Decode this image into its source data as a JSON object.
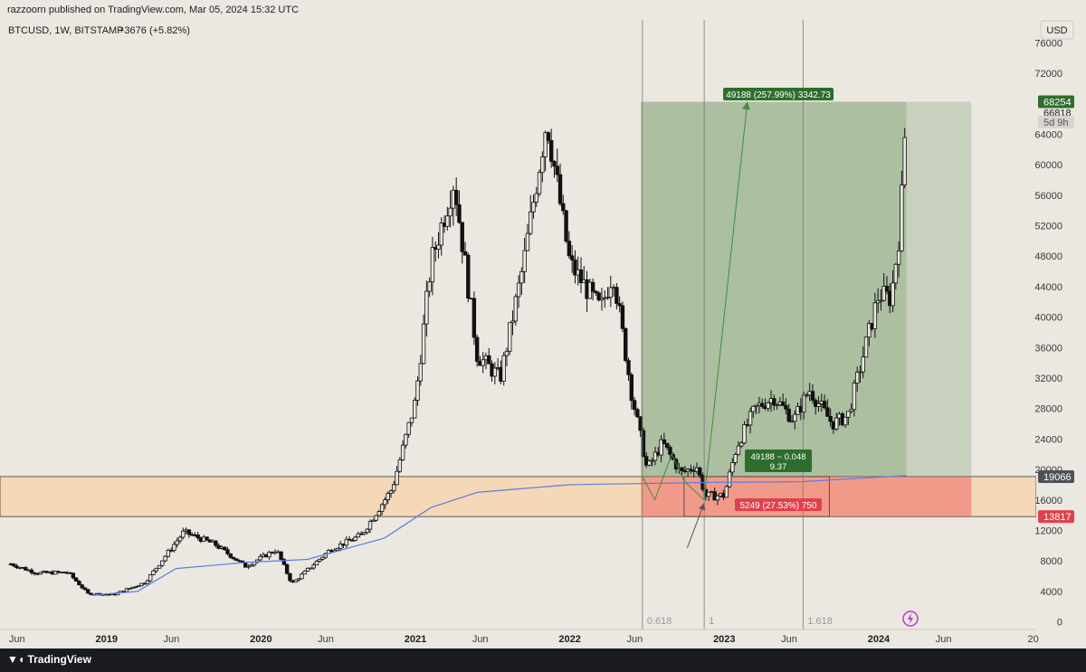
{
  "header": {
    "published": "razzoorn published on TradingView.com, Mar 05, 2024 15:32 UTC",
    "symbol": "BTCUSD, 1W, BITSTAMP",
    "change": "+3676 (+5.82%)",
    "currency": "USD"
  },
  "footer": {
    "brand": "TradingView"
  },
  "colors": {
    "background": "#ebe7e1",
    "candle": "#111111",
    "ma_line": "#5b7fe0",
    "target_zone": "#5f8f55",
    "stop_zone": "#ef5b5b",
    "support_band": "#f7d3a8"
  },
  "chart_data": {
    "type": "candlestick",
    "symbol": "BTCUSD",
    "interval": "1W",
    "exchange": "BITSTAMP",
    "y_axis": {
      "ticks": [
        0,
        4000,
        8000,
        12000,
        16000,
        20000,
        24000,
        28000,
        32000,
        36000,
        40000,
        44000,
        48000,
        52000,
        56000,
        60000,
        64000,
        72000,
        76000
      ],
      "range": [
        -1000,
        79000
      ]
    },
    "x_axis": {
      "ticks": [
        {
          "label": "Jun",
          "t": 2018.42
        },
        {
          "label": "2019",
          "t": 2019.0
        },
        {
          "label": "Jun",
          "t": 2019.42
        },
        {
          "label": "2020",
          "t": 2020.0
        },
        {
          "label": "Jun",
          "t": 2020.42
        },
        {
          "label": "2021",
          "t": 2021.0
        },
        {
          "label": "Jun",
          "t": 2021.42
        },
        {
          "label": "2022",
          "t": 2022.0
        },
        {
          "label": "Jun",
          "t": 2022.42
        },
        {
          "label": "2023",
          "t": 2023.0
        },
        {
          "label": "Jun",
          "t": 2023.42
        },
        {
          "label": "2024",
          "t": 2024.0
        },
        {
          "label": "Jun",
          "t": 2024.42
        },
        {
          "label": "20",
          "t": 2025.0
        }
      ]
    },
    "price_waypoints": [
      [
        2018.38,
        7600
      ],
      [
        2018.55,
        6400
      ],
      [
        2018.75,
        6500
      ],
      [
        2018.88,
        3700
      ],
      [
        2019.05,
        3600
      ],
      [
        2019.25,
        5200
      ],
      [
        2019.5,
        11800
      ],
      [
        2019.7,
        10200
      ],
      [
        2019.9,
        7300
      ],
      [
        2020.1,
        9500
      ],
      [
        2020.2,
        5000
      ],
      [
        2020.45,
        9500
      ],
      [
        2020.65,
        11400
      ],
      [
        2020.85,
        17500
      ],
      [
        2021.0,
        29000
      ],
      [
        2021.1,
        47000
      ],
      [
        2021.25,
        58000
      ],
      [
        2021.4,
        35000
      ],
      [
        2021.55,
        32000
      ],
      [
        2021.7,
        47000
      ],
      [
        2021.85,
        66000
      ],
      [
        2022.0,
        47000
      ],
      [
        2022.2,
        41000
      ],
      [
        2022.28,
        46000
      ],
      [
        2022.4,
        30000
      ],
      [
        2022.5,
        20000
      ],
      [
        2022.6,
        23500
      ],
      [
        2022.72,
        19500
      ],
      [
        2022.82,
        20500
      ],
      [
        2022.88,
        16500
      ],
      [
        2023.0,
        16600
      ],
      [
        2023.08,
        23000
      ],
      [
        2023.2,
        28000
      ],
      [
        2023.32,
        29500
      ],
      [
        2023.45,
        26500
      ],
      [
        2023.55,
        30500
      ],
      [
        2023.7,
        26000
      ],
      [
        2023.8,
        27000
      ],
      [
        2023.9,
        35000
      ],
      [
        2024.0,
        43000
      ],
      [
        2024.08,
        42500
      ],
      [
        2024.14,
        52000
      ],
      [
        2024.18,
        68254
      ]
    ],
    "moving_average": [
      [
        2018.9,
        3500
      ],
      [
        2019.2,
        4000
      ],
      [
        2019.45,
        7000
      ],
      [
        2019.9,
        7800
      ],
      [
        2020.3,
        8200
      ],
      [
        2020.8,
        11000
      ],
      [
        2021.1,
        15000
      ],
      [
        2021.4,
        17000
      ],
      [
        2022.0,
        18000
      ],
      [
        2022.9,
        18300
      ],
      [
        2023.5,
        18400
      ],
      [
        2024.18,
        19200
      ]
    ],
    "vertical_lines": [
      {
        "t": 2022.47,
        "label": "0.618"
      },
      {
        "t": 2022.87,
        "label": "1"
      },
      {
        "t": 2023.51,
        "label": "1.618"
      }
    ],
    "support_band": {
      "from": 13817,
      "to": 19066
    },
    "position": {
      "entry": 19066,
      "stop": 13817,
      "target": 68254,
      "t_start": 2022.46,
      "t_end": 2024.6,
      "target_label": "49188 (257.99%) 3342.73",
      "stop_label": "5249 (27.53%) 750",
      "ratio_label_1": "49188 ~ 0.048",
      "ratio_label_2": "9.37"
    },
    "price_labels": [
      {
        "value": 68254,
        "text": "68254",
        "style": "green"
      },
      {
        "value": 66818,
        "text": "66818",
        "style": "plain"
      },
      {
        "value": 65600,
        "text": "5d 9h",
        "style": "muted"
      },
      {
        "value": 19066,
        "text": "19066",
        "style": "gray"
      },
      {
        "value": 13817,
        "text": "13817",
        "style": "red"
      }
    ]
  }
}
